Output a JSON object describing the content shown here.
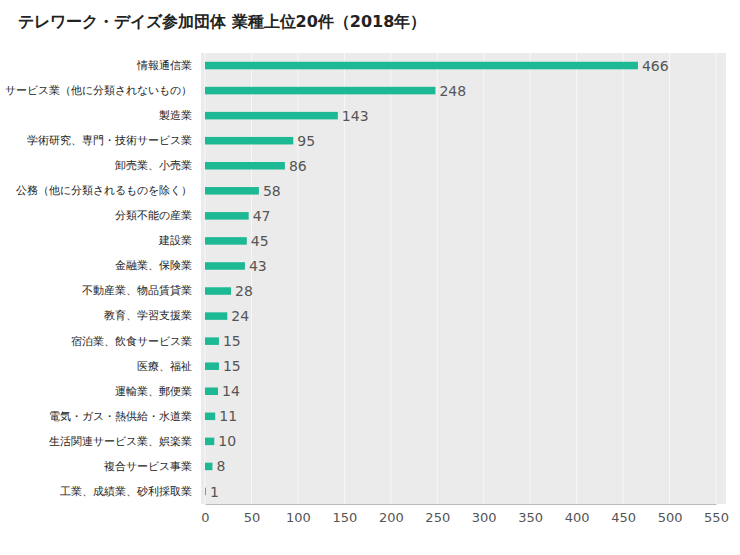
{
  "chart_data": {
    "type": "bar",
    "title": "テレワーク・デイズ参加団体 業種上位20件（2018年）",
    "orientation": "horizontal",
    "categories": [
      "情報通信業",
      "サービス業（他に分類されないもの）",
      "製造業",
      "学術研究、専門・技術サービス業",
      "卸売業、小売業",
      "公務（他に分類されるものを除く）",
      "分類不能の産業",
      "建設業",
      "金融業、保険業",
      "不動産業、物品賃貸業",
      "教育、学習支援業",
      "宿泊業、飲食サービス業",
      "医療、福祉",
      "運輸業、郵便業",
      "電気・ガス・熱供給・水道業",
      "生活関連サービス業、娯楽業",
      "複合サービス事業",
      "工業、成績業、砂利採取業"
    ],
    "values": [
      466,
      248,
      143,
      95,
      86,
      58,
      47,
      45,
      43,
      28,
      24,
      15,
      15,
      14,
      11,
      10,
      8,
      1
    ],
    "color": "#1db894",
    "xlim": [
      0,
      550
    ],
    "xticks": [
      0,
      50,
      100,
      150,
      200,
      250,
      300,
      350,
      400,
      450,
      500,
      550
    ],
    "grid": true,
    "data_labels": true
  }
}
